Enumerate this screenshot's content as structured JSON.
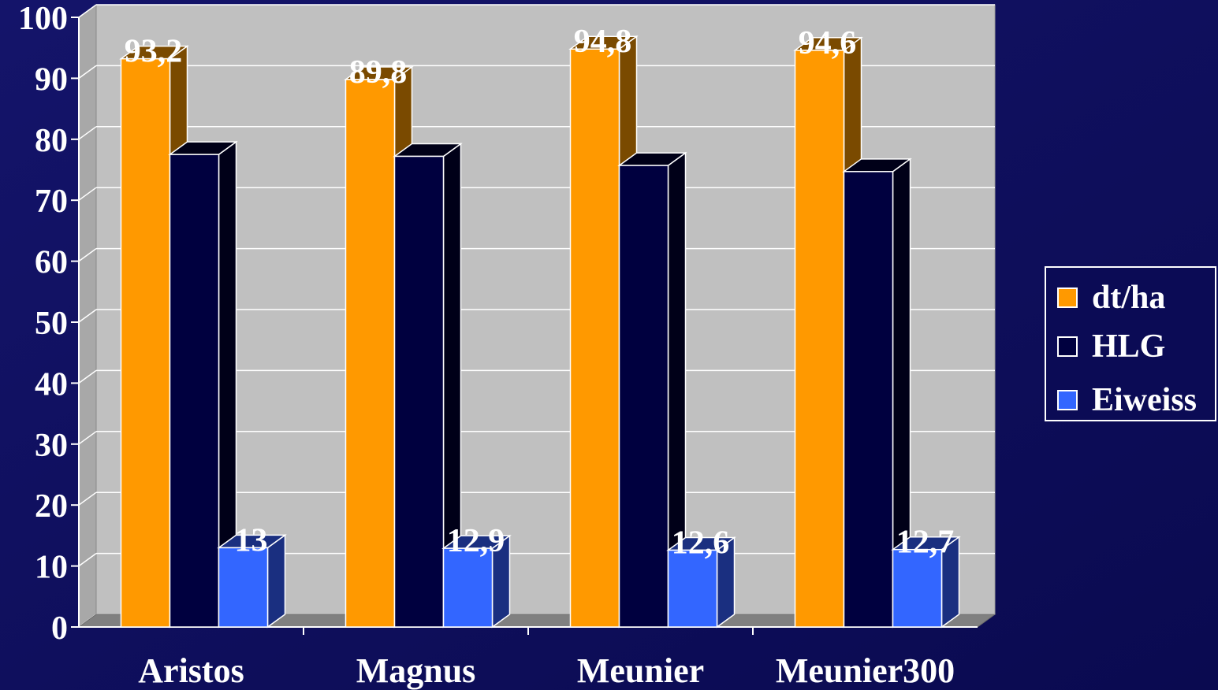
{
  "chart_data": {
    "type": "bar",
    "categories": [
      "Aristos",
      "Magnus",
      "Meunier",
      "Meunier300"
    ],
    "series": [
      {
        "name": "dt/ha",
        "values": [
          93.2,
          89.8,
          94.8,
          94.6
        ],
        "labels": [
          "93,2",
          "89,8",
          "94,8",
          "94,6"
        ],
        "color": "#ff9900",
        "side_color": "#7a4a00"
      },
      {
        "name": "HLG",
        "values": [
          77.5,
          77.2,
          75.7,
          74.7
        ],
        "labels": [],
        "color": "#00003f",
        "side_color": "#000018"
      },
      {
        "name": "Eiweiss",
        "values": [
          13,
          12.9,
          12.6,
          12.7
        ],
        "labels": [
          "13",
          "12,9",
          "12,6",
          "12,7"
        ],
        "color": "#3366ff",
        "side_color": "#1a2f80"
      }
    ],
    "yticks": [
      "0",
      "10",
      "20",
      "30",
      "40",
      "50",
      "60",
      "70",
      "80",
      "90",
      "100"
    ],
    "ylim": [
      0,
      100
    ],
    "grid": true,
    "legend_position": "right",
    "plot_background": "#c0c0c0",
    "background": "#0b0b55"
  }
}
